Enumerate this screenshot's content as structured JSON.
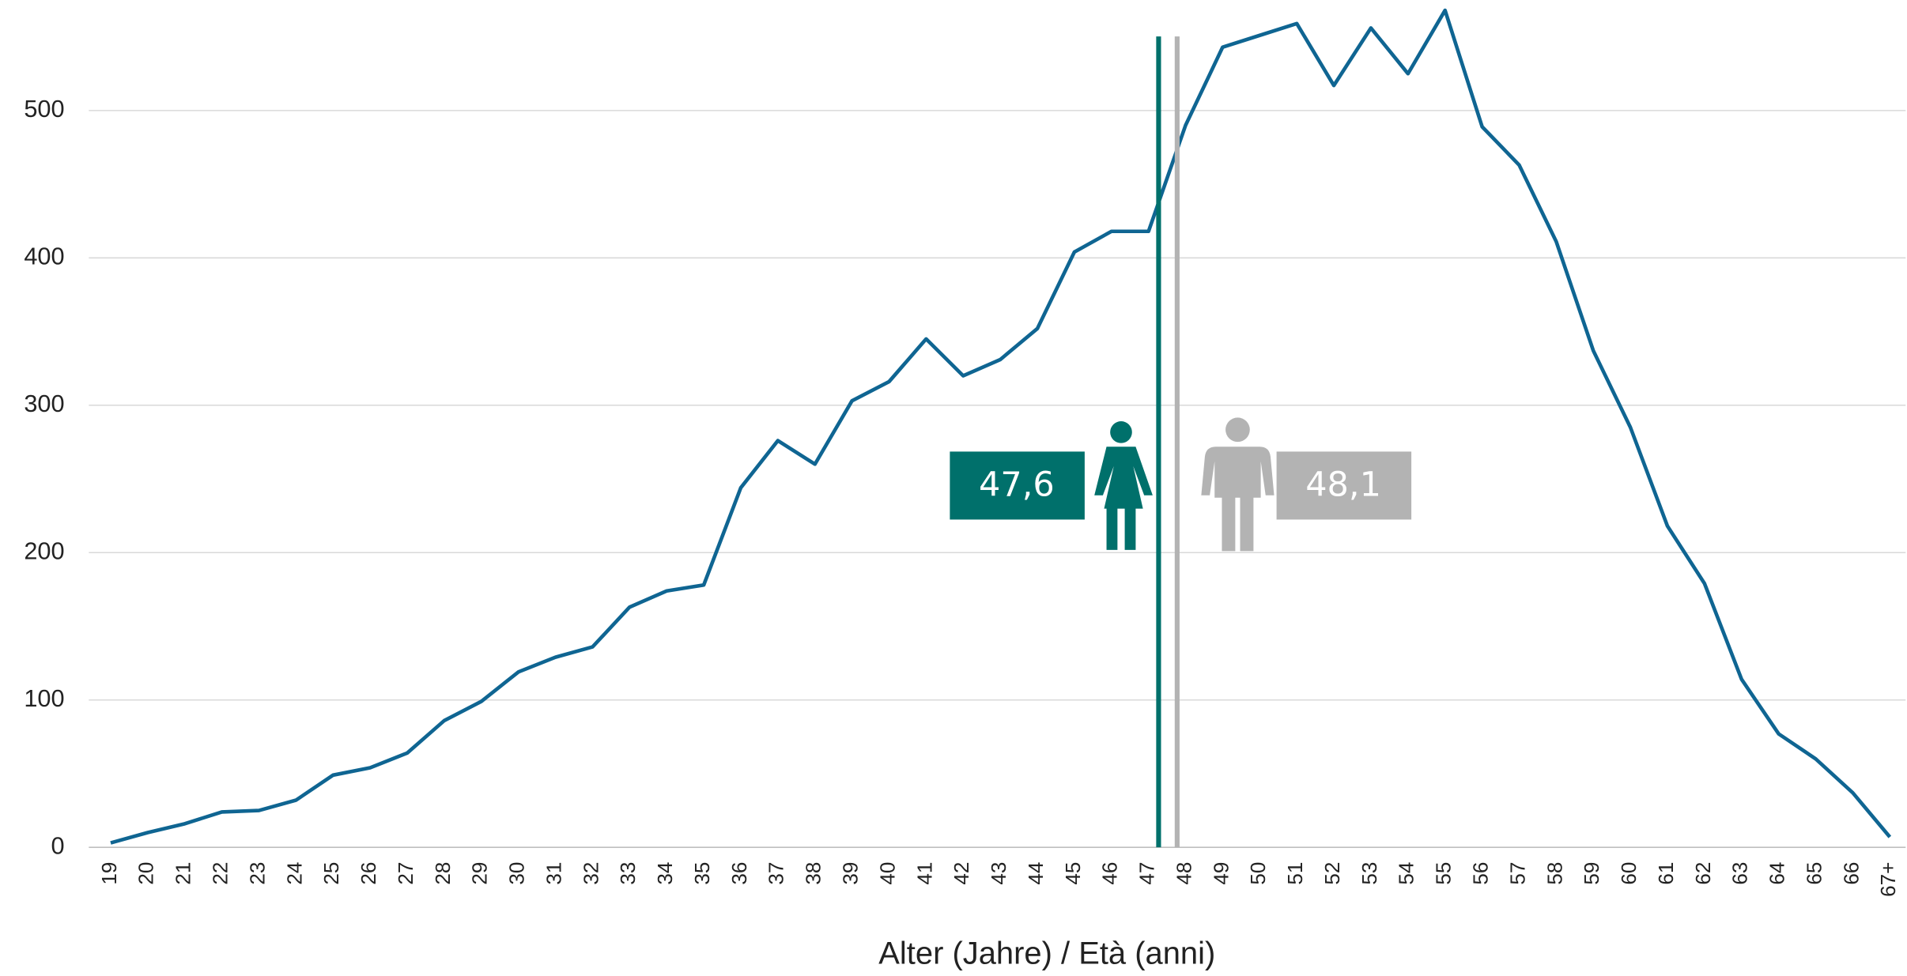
{
  "chart_data": {
    "type": "line",
    "x_label": "Alter (Jahre) / Età (anni)",
    "categories": [
      "19",
      "20",
      "21",
      "22",
      "23",
      "24",
      "25",
      "26",
      "27",
      "28",
      "29",
      "30",
      "31",
      "32",
      "33",
      "34",
      "35",
      "36",
      "37",
      "38",
      "39",
      "40",
      "41",
      "42",
      "43",
      "44",
      "45",
      "46",
      "47",
      "48",
      "49",
      "50",
      "51",
      "52",
      "53",
      "54",
      "55",
      "56",
      "57",
      "58",
      "59",
      "60",
      "61",
      "62",
      "63",
      "64",
      "65",
      "66",
      "67+"
    ],
    "series": [
      {
        "name": null,
        "color": "#0f6592",
        "values": [
          3,
          10,
          16,
          24,
          25,
          32,
          49,
          54,
          64,
          86,
          99,
          119,
          129,
          136,
          163,
          174,
          178,
          244,
          276,
          260,
          303,
          316,
          345,
          320,
          331,
          352,
          404,
          418,
          418,
          490,
          543,
          551,
          559,
          517,
          556,
          525,
          568,
          489,
          463,
          411,
          337,
          285,
          218,
          179,
          114,
          77,
          60,
          37,
          7
        ]
      }
    ],
    "ylim": [
      0,
      575
    ],
    "yticks": [
      0,
      100,
      200,
      300,
      400,
      500
    ],
    "grid": true,
    "annotations": [
      {
        "value": 47.6,
        "label": "47,6",
        "color": "#00706b"
      },
      {
        "value": 48.1,
        "label": "48,1",
        "color": "#b3b3b3"
      }
    ]
  }
}
